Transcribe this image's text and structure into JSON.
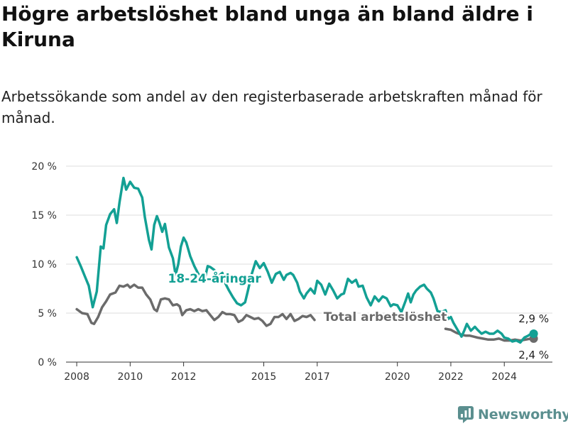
{
  "header": {
    "title": "Högre arbetslöshet bland unga än bland äldre i Kiruna",
    "subtitle": "Arbetssökande som andel av den registerbaserade arbetskraften månad för månad."
  },
  "brand": {
    "name": "Newsworthy",
    "icon": "newsworthy-logo-icon",
    "color": "#5b8f8f"
  },
  "chart_data": {
    "type": "line",
    "x_unit": "year",
    "xlim": [
      2007.6,
      2025.8
    ],
    "ylim": [
      0,
      20
    ],
    "grid": true,
    "xticks": [
      {
        "value": 2008,
        "label": "2008"
      },
      {
        "value": 2010,
        "label": "2010"
      },
      {
        "value": 2012,
        "label": "2012"
      },
      {
        "value": 2015,
        "label": "2015"
      },
      {
        "value": 2017,
        "label": "2017"
      },
      {
        "value": 2020,
        "label": "2020"
      },
      {
        "value": 2022,
        "label": "2022"
      },
      {
        "value": 2024,
        "label": "2024"
      }
    ],
    "yticks": [
      {
        "value": 0,
        "label": "0 %"
      },
      {
        "value": 5,
        "label": "5 %"
      },
      {
        "value": 10,
        "label": "10 %"
      },
      {
        "value": 15,
        "label": "15 %"
      },
      {
        "value": 20,
        "label": "20 %"
      }
    ],
    "series": [
      {
        "name": "18-24-åringar",
        "color": "#13a094",
        "end_label": "2,9 %",
        "points": [
          [
            2008.0,
            10.7
          ],
          [
            2008.15,
            9.8
          ],
          [
            2008.3,
            8.8
          ],
          [
            2008.45,
            7.8
          ],
          [
            2008.6,
            5.6
          ],
          [
            2008.75,
            7.2
          ],
          [
            2008.9,
            11.8
          ],
          [
            2009.0,
            11.6
          ],
          [
            2009.1,
            14.0
          ],
          [
            2009.25,
            15.1
          ],
          [
            2009.4,
            15.6
          ],
          [
            2009.5,
            14.2
          ],
          [
            2009.6,
            16.3
          ],
          [
            2009.75,
            18.8
          ],
          [
            2009.85,
            17.6
          ],
          [
            2010.0,
            18.4
          ],
          [
            2010.15,
            17.8
          ],
          [
            2010.3,
            17.7
          ],
          [
            2010.45,
            16.8
          ],
          [
            2010.55,
            14.8
          ],
          [
            2010.7,
            12.5
          ],
          [
            2010.8,
            11.5
          ],
          [
            2010.9,
            14.0
          ],
          [
            2011.0,
            14.9
          ],
          [
            2011.1,
            14.2
          ],
          [
            2011.2,
            13.3
          ],
          [
            2011.3,
            14.1
          ],
          [
            2011.45,
            11.7
          ],
          [
            2011.6,
            10.6
          ],
          [
            2011.7,
            8.9
          ],
          [
            2011.8,
            10.0
          ],
          [
            2011.9,
            11.8
          ],
          [
            2012.0,
            12.7
          ],
          [
            2012.1,
            12.2
          ],
          [
            2012.25,
            10.8
          ],
          [
            2012.4,
            9.8
          ],
          [
            2012.55,
            9.0
          ],
          [
            2012.7,
            8.4
          ],
          [
            2012.8,
            8.6
          ],
          [
            2012.9,
            9.8
          ],
          [
            2013.0,
            9.7
          ],
          [
            2013.15,
            9.4
          ],
          [
            2013.3,
            8.8
          ],
          [
            2013.45,
            9.1
          ],
          [
            2013.55,
            8.1
          ],
          [
            2013.7,
            7.3
          ],
          [
            2013.85,
            6.6
          ],
          [
            2014.0,
            6.0
          ],
          [
            2014.15,
            5.8
          ],
          [
            2014.3,
            6.1
          ],
          [
            2014.4,
            7.2
          ],
          [
            2014.55,
            9.0
          ],
          [
            2014.7,
            10.3
          ],
          [
            2014.85,
            9.6
          ],
          [
            2015.0,
            10.1
          ],
          [
            2015.15,
            9.2
          ],
          [
            2015.3,
            8.1
          ],
          [
            2015.45,
            9.0
          ],
          [
            2015.6,
            9.2
          ],
          [
            2015.75,
            8.4
          ],
          [
            2015.85,
            8.9
          ],
          [
            2016.0,
            9.1
          ],
          [
            2016.1,
            8.9
          ],
          [
            2016.25,
            8.1
          ],
          [
            2016.35,
            7.2
          ],
          [
            2016.5,
            6.5
          ],
          [
            2016.6,
            7.0
          ],
          [
            2016.75,
            7.5
          ],
          [
            2016.9,
            7.0
          ],
          [
            2017.0,
            8.3
          ],
          [
            2017.15,
            7.9
          ],
          [
            2017.3,
            6.9
          ],
          [
            2017.45,
            8.0
          ],
          [
            2017.6,
            7.3
          ],
          [
            2017.75,
            6.5
          ],
          [
            2017.9,
            6.9
          ],
          [
            2018.0,
            7.0
          ],
          [
            2018.15,
            8.5
          ],
          [
            2018.3,
            8.1
          ],
          [
            2018.45,
            8.4
          ],
          [
            2018.55,
            7.7
          ],
          [
            2018.7,
            7.8
          ],
          [
            2018.85,
            6.6
          ],
          [
            2019.0,
            5.8
          ],
          [
            2019.15,
            6.7
          ],
          [
            2019.3,
            6.2
          ],
          [
            2019.45,
            6.7
          ],
          [
            2019.6,
            6.5
          ],
          [
            2019.75,
            5.7
          ],
          [
            2019.85,
            5.9
          ],
          [
            2020.0,
            5.8
          ],
          [
            2020.15,
            5.1
          ],
          [
            2020.3,
            6.2
          ],
          [
            2020.4,
            7.0
          ],
          [
            2020.5,
            6.1
          ],
          [
            2020.6,
            6.9
          ],
          [
            2020.7,
            7.3
          ],
          [
            2020.85,
            7.7
          ],
          [
            2021.0,
            7.9
          ],
          [
            2021.1,
            7.5
          ],
          [
            2021.25,
            7.1
          ],
          [
            2021.35,
            6.5
          ],
          [
            2021.5,
            5.2
          ],
          [
            2021.65,
            5.1
          ],
          [
            2021.8,
            5.3
          ],
          [
            2021.9,
            4.4
          ],
          [
            2022.0,
            4.6
          ],
          [
            2022.1,
            4.0
          ],
          [
            2022.25,
            3.3
          ],
          [
            2022.4,
            2.6
          ],
          [
            2022.5,
            3.2
          ],
          [
            2022.6,
            3.9
          ],
          [
            2022.75,
            3.2
          ],
          [
            2022.9,
            3.6
          ],
          [
            2023.0,
            3.3
          ],
          [
            2023.15,
            2.9
          ],
          [
            2023.3,
            3.1
          ],
          [
            2023.45,
            2.9
          ],
          [
            2023.6,
            2.9
          ],
          [
            2023.75,
            3.2
          ],
          [
            2023.9,
            2.9
          ],
          [
            2024.0,
            2.5
          ],
          [
            2024.15,
            2.4
          ],
          [
            2024.3,
            2.1
          ],
          [
            2024.45,
            2.2
          ],
          [
            2024.6,
            2.0
          ],
          [
            2024.75,
            2.5
          ],
          [
            2024.9,
            2.7
          ],
          [
            2025.0,
            2.9
          ],
          [
            2025.1,
            2.9
          ]
        ]
      },
      {
        "name": "Total arbetslöshet",
        "color": "#6b6b6b",
        "end_label": "2,4 %",
        "points": [
          [
            2008.0,
            5.4
          ],
          [
            2008.2,
            5.0
          ],
          [
            2008.4,
            4.9
          ],
          [
            2008.55,
            4.0
          ],
          [
            2008.65,
            3.9
          ],
          [
            2008.8,
            4.6
          ],
          [
            2008.95,
            5.6
          ],
          [
            2009.1,
            6.2
          ],
          [
            2009.25,
            6.9
          ],
          [
            2009.45,
            7.1
          ],
          [
            2009.6,
            7.8
          ],
          [
            2009.75,
            7.7
          ],
          [
            2009.9,
            7.9
          ],
          [
            2010.0,
            7.6
          ],
          [
            2010.15,
            7.9
          ],
          [
            2010.3,
            7.6
          ],
          [
            2010.45,
            7.6
          ],
          [
            2010.6,
            6.9
          ],
          [
            2010.75,
            6.4
          ],
          [
            2010.9,
            5.4
          ],
          [
            2011.0,
            5.2
          ],
          [
            2011.15,
            6.4
          ],
          [
            2011.3,
            6.5
          ],
          [
            2011.45,
            6.4
          ],
          [
            2011.6,
            5.8
          ],
          [
            2011.75,
            5.9
          ],
          [
            2011.85,
            5.7
          ],
          [
            2011.95,
            4.8
          ],
          [
            2012.1,
            5.3
          ],
          [
            2012.25,
            5.4
          ],
          [
            2012.4,
            5.2
          ],
          [
            2012.55,
            5.4
          ],
          [
            2012.7,
            5.2
          ],
          [
            2012.85,
            5.3
          ],
          [
            2013.0,
            4.8
          ],
          [
            2013.15,
            4.3
          ],
          [
            2013.3,
            4.6
          ],
          [
            2013.45,
            5.1
          ],
          [
            2013.6,
            4.9
          ],
          [
            2013.75,
            4.9
          ],
          [
            2013.9,
            4.8
          ],
          [
            2014.05,
            4.1
          ],
          [
            2014.2,
            4.3
          ],
          [
            2014.35,
            4.8
          ],
          [
            2014.5,
            4.6
          ],
          [
            2014.65,
            4.4
          ],
          [
            2014.8,
            4.5
          ],
          [
            2014.95,
            4.2
          ],
          [
            2015.1,
            3.7
          ],
          [
            2015.25,
            3.9
          ],
          [
            2015.4,
            4.6
          ],
          [
            2015.55,
            4.6
          ],
          [
            2015.7,
            4.9
          ],
          [
            2015.85,
            4.4
          ],
          [
            2016.0,
            4.9
          ],
          [
            2016.15,
            4.2
          ],
          [
            2016.3,
            4.4
          ],
          [
            2016.45,
            4.7
          ],
          [
            2016.6,
            4.6
          ],
          [
            2016.75,
            4.8
          ],
          [
            2016.9,
            4.3
          ]
        ],
        "points_tail": [
          [
            2021.8,
            3.4
          ],
          [
            2022.0,
            3.3
          ],
          [
            2022.2,
            3.0
          ],
          [
            2022.4,
            2.8
          ],
          [
            2022.55,
            2.7
          ],
          [
            2022.7,
            2.7
          ],
          [
            2022.85,
            2.6
          ],
          [
            2023.0,
            2.5
          ],
          [
            2023.2,
            2.4
          ],
          [
            2023.4,
            2.3
          ],
          [
            2023.6,
            2.3
          ],
          [
            2023.8,
            2.4
          ],
          [
            2024.0,
            2.2
          ],
          [
            2024.2,
            2.2
          ],
          [
            2024.4,
            2.3
          ],
          [
            2024.6,
            2.2
          ],
          [
            2024.8,
            2.3
          ],
          [
            2025.0,
            2.4
          ],
          [
            2025.1,
            2.4
          ]
        ]
      }
    ],
    "inline_labels": [
      {
        "text": "18-24-åringar",
        "x": 2014.9,
        "y": 8.1,
        "series": 0
      },
      {
        "text": "Total arbetslöshet",
        "x": 2021.85,
        "y": 4.2,
        "series": 1
      }
    ]
  }
}
